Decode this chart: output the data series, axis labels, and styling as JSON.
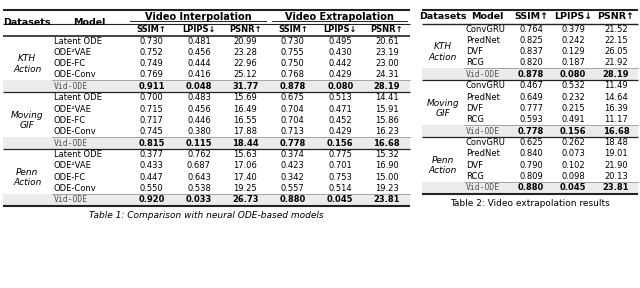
{
  "table1": {
    "title": "Table 1: Comparison with neural ODE-based models",
    "rows": {
      "KTH Action": [
        [
          "Latent ODE",
          "0.730",
          "0.481",
          "20.99",
          "0.730",
          "0.495",
          "20.61"
        ],
        [
          "ODE²VAE",
          "0.752",
          "0.456",
          "23.28",
          "0.755",
          "0.430",
          "23.19"
        ],
        [
          "ODE-FC",
          "0.749",
          "0.444",
          "22.96",
          "0.750",
          "0.442",
          "23.00"
        ],
        [
          "ODE-Conv",
          "0.769",
          "0.416",
          "25.12",
          "0.768",
          "0.429",
          "24.31"
        ],
        [
          "Vid-ODE",
          "0.911",
          "0.048",
          "31.77",
          "0.878",
          "0.080",
          "28.19"
        ]
      ],
      "Moving GIF": [
        [
          "Latent ODE",
          "0.700",
          "0.483",
          "15.69",
          "0.675",
          "0.513",
          "14.41"
        ],
        [
          "ODE²VAE",
          "0.715",
          "0.456",
          "16.49",
          "0.704",
          "0.471",
          "15.91"
        ],
        [
          "ODE-FC",
          "0.717",
          "0.446",
          "16.55",
          "0.704",
          "0.452",
          "15.86"
        ],
        [
          "ODE-Conv",
          "0.745",
          "0.380",
          "17.88",
          "0.713",
          "0.429",
          "16.23"
        ],
        [
          "Vid-ODE",
          "0.815",
          "0.115",
          "18.44",
          "0.778",
          "0.156",
          "16.68"
        ]
      ],
      "Penn Action": [
        [
          "Latent ODE",
          "0.377",
          "0.762",
          "15.63",
          "0.374",
          "0.775",
          "15.32"
        ],
        [
          "ODE²VAE",
          "0.433",
          "0.687",
          "17.06",
          "0.423",
          "0.701",
          "16.90"
        ],
        [
          "ODE-FC",
          "0.447",
          "0.643",
          "17.40",
          "0.342",
          "0.753",
          "15.00"
        ],
        [
          "ODE-Conv",
          "0.550",
          "0.538",
          "19.25",
          "0.557",
          "0.514",
          "19.23"
        ],
        [
          "Vid-ODE",
          "0.920",
          "0.033",
          "26.73",
          "0.880",
          "0.045",
          "23.81"
        ]
      ]
    }
  },
  "table2": {
    "title": "Table 2: Video extrapolation results",
    "rows": {
      "KTH Action": [
        [
          "ConvGRU",
          "0.764",
          "0.379",
          "21.52"
        ],
        [
          "PredNet",
          "0.825",
          "0.242",
          "22.15"
        ],
        [
          "DVF",
          "0.837",
          "0.129",
          "26.05"
        ],
        [
          "RCG",
          "0.820",
          "0.187",
          "21.92"
        ],
        [
          "Vid-ODE",
          "0.878",
          "0.080",
          "28.19"
        ]
      ],
      "Moving GIF": [
        [
          "ConvGRU",
          "0.467",
          "0.532",
          "11.49"
        ],
        [
          "PredNet",
          "0.649",
          "0.232",
          "14.64"
        ],
        [
          "DVF",
          "0.777",
          "0.215",
          "16.39"
        ],
        [
          "RCG",
          "0.593",
          "0.491",
          "11.17"
        ],
        [
          "Vid-ODE",
          "0.778",
          "0.156",
          "16.68"
        ]
      ],
      "Penn Action": [
        [
          "ConvGRU",
          "0.625",
          "0.262",
          "18.48"
        ],
        [
          "PredNet",
          "0.840",
          "0.073",
          "19.01"
        ],
        [
          "DVF",
          "0.790",
          "0.102",
          "21.90"
        ],
        [
          "RCG",
          "0.809",
          "0.098",
          "20.13"
        ],
        [
          "Vid-ODE",
          "0.880",
          "0.045",
          "23.81"
        ]
      ]
    }
  }
}
